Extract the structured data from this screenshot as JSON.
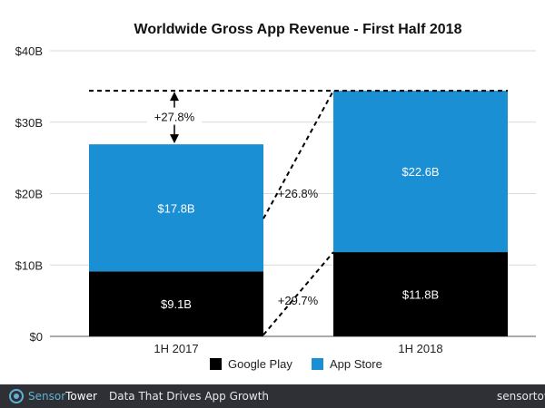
{
  "chart_data": {
    "type": "bar",
    "stacked": true,
    "title": "Worldwide Gross App Revenue - First Half 2018",
    "categories": [
      "1H 2017",
      "1H 2018"
    ],
    "series": [
      {
        "name": "Google Play",
        "color": "#000000",
        "values": [
          9.1,
          11.8
        ],
        "labels": [
          "$9.1B",
          "$11.8B"
        ]
      },
      {
        "name": "App Store",
        "color": "#1b8fd3",
        "values": [
          17.8,
          22.6
        ],
        "labels": [
          "$17.8B",
          "$22.6B"
        ]
      }
    ],
    "ylim": [
      0,
      40
    ],
    "yticks": [
      0,
      10,
      20,
      30,
      40
    ],
    "ytick_labels": [
      "$0",
      "$10B",
      "$20B",
      "$30B",
      "$40B"
    ],
    "grid": true,
    "legend_position": "bottom",
    "annotations": {
      "total_growth": "+27.8%",
      "app_store_growth": "+26.8%",
      "google_play_growth": "+29.7%"
    }
  },
  "footer": {
    "brand_part1": "Sensor",
    "brand_part2": "Tower",
    "tagline": "Data That Drives App Growth",
    "site": "sensortower.com"
  }
}
